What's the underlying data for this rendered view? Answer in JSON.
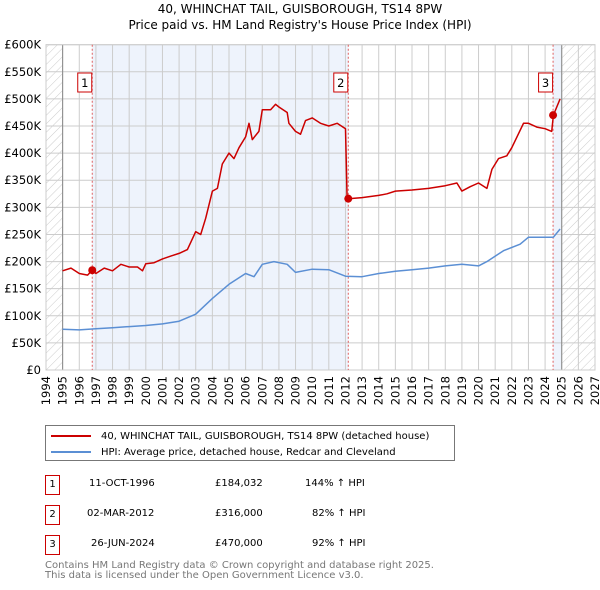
{
  "title_line1": "40, WHINCHAT TAIL, GUISBOROUGH, TS14 8PW",
  "title_line2": "Price paid vs. HM Land Registry's House Price Index (HPI)",
  "chart_data": {
    "type": "line",
    "ylim": [
      0,
      600000
    ],
    "xlim": [
      1994,
      2027
    ],
    "y_ticks": [
      0,
      50000,
      100000,
      150000,
      200000,
      250000,
      300000,
      350000,
      400000,
      450000,
      500000,
      550000,
      600000
    ],
    "y_tick_labels": [
      "£0",
      "£50K",
      "£100K",
      "£150K",
      "£200K",
      "£250K",
      "£300K",
      "£350K",
      "£400K",
      "£450K",
      "£500K",
      "£550K",
      "£600K"
    ],
    "x_ticks": [
      1994,
      1995,
      1996,
      1997,
      1998,
      1999,
      2000,
      2001,
      2002,
      2003,
      2004,
      2005,
      2006,
      2007,
      2008,
      2009,
      2010,
      2011,
      2012,
      2013,
      2014,
      2015,
      2016,
      2017,
      2018,
      2019,
      2020,
      2021,
      2022,
      2023,
      2024,
      2025,
      2026,
      2027
    ],
    "grid": true,
    "colors": {
      "property": "#cc0000",
      "hpi": "#5b8fd4",
      "shade": "#eef3fc",
      "marker_border": "#cc0000"
    },
    "series": [
      {
        "name": "40, WHINCHAT TAIL, GUISBOROUGH, TS14 8PW (detached house)",
        "key": "property",
        "x": [
          1995.0,
          1995.5,
          1996.0,
          1996.5,
          1996.78,
          1997.0,
          1997.5,
          1998.0,
          1998.5,
          1999.0,
          1999.5,
          1999.8,
          2000.0,
          2000.5,
          2001.0,
          2001.5,
          2002.0,
          2002.5,
          2003.0,
          2003.3,
          2003.6,
          2004.0,
          2004.3,
          2004.6,
          2005.0,
          2005.3,
          2005.6,
          2006.0,
          2006.2,
          2006.4,
          2006.8,
          2007.0,
          2007.5,
          2007.8,
          2008.0,
          2008.5,
          2008.6,
          2009.0,
          2009.3,
          2009.6,
          2010.0,
          2010.5,
          2011.0,
          2011.5,
          2012.0,
          2012.1,
          2012.17,
          2013.0,
          2014.0,
          2014.5,
          2015.0,
          2016.0,
          2017.0,
          2018.0,
          2018.7,
          2019.0,
          2019.5,
          2020.0,
          2020.5,
          2020.8,
          2021.2,
          2021.7,
          2022.0,
          2022.7,
          2023.0,
          2023.5,
          2024.0,
          2024.4,
          2024.5,
          2024.9
        ],
        "y": [
          183000,
          188000,
          178000,
          175000,
          184032,
          178000,
          188000,
          183000,
          195000,
          190000,
          190000,
          183000,
          196000,
          198000,
          205000,
          210000,
          215000,
          222000,
          255000,
          250000,
          280000,
          330000,
          335000,
          380000,
          400000,
          390000,
          410000,
          430000,
          455000,
          425000,
          440000,
          480000,
          480000,
          490000,
          485000,
          475000,
          455000,
          440000,
          435000,
          460000,
          465000,
          455000,
          450000,
          455000,
          445000,
          316000,
          316000,
          318000,
          322000,
          325000,
          330000,
          332000,
          335000,
          340000,
          345000,
          330000,
          338000,
          345000,
          335000,
          370000,
          390000,
          395000,
          410000,
          455000,
          455000,
          448000,
          445000,
          440000,
          470000,
          500000
        ]
      },
      {
        "name": "HPI: Average price, detached house, Redcar and Cleveland",
        "key": "hpi",
        "x": [
          1995,
          1996,
          1997,
          1998,
          1999,
          2000,
          2001,
          2002,
          2003,
          2004,
          2005,
          2006,
          2006.5,
          2007,
          2007.7,
          2008.5,
          2009,
          2010,
          2011,
          2012,
          2013,
          2014,
          2015,
          2016,
          2017,
          2018,
          2019,
          2020,
          2020.5,
          2021.5,
          2022.5,
          2023,
          2024,
          2024.5,
          2024.9
        ],
        "y": [
          75000,
          74000,
          76000,
          78000,
          80000,
          82000,
          85000,
          90000,
          103000,
          132000,
          158000,
          178000,
          172000,
          195000,
          200000,
          195000,
          180000,
          186000,
          185000,
          173000,
          172000,
          178000,
          182000,
          185000,
          188000,
          192000,
          195000,
          192000,
          200000,
          220000,
          232000,
          245000,
          245000,
          245000,
          260000
        ]
      }
    ],
    "sales": [
      {
        "label": "1",
        "x": 1996.78,
        "y": 184032
      },
      {
        "label": "2",
        "x": 2012.17,
        "y": 316000
      },
      {
        "label": "3",
        "x": 2024.48,
        "y": 470000
      }
    ],
    "data_end": 2025.0
  },
  "legend": {
    "property": "40, WHINCHAT TAIL, GUISBOROUGH, TS14 8PW (detached house)",
    "hpi": "HPI: Average price, detached house, Redcar and Cleveland"
  },
  "transactions": [
    {
      "num": "1",
      "date": "11-OCT-1996",
      "price": "£184,032",
      "hpi": "144% ↑ HPI"
    },
    {
      "num": "2",
      "date": "02-MAR-2012",
      "price": "£316,000",
      "hpi": "82% ↑ HPI"
    },
    {
      "num": "3",
      "date": "26-JUN-2024",
      "price": "£470,000",
      "hpi": "92% ↑ HPI"
    }
  ],
  "footer_line1": "Contains HM Land Registry data © Crown copyright and database right 2025.",
  "footer_line2": "This data is licensed under the Open Government Licence v3.0."
}
